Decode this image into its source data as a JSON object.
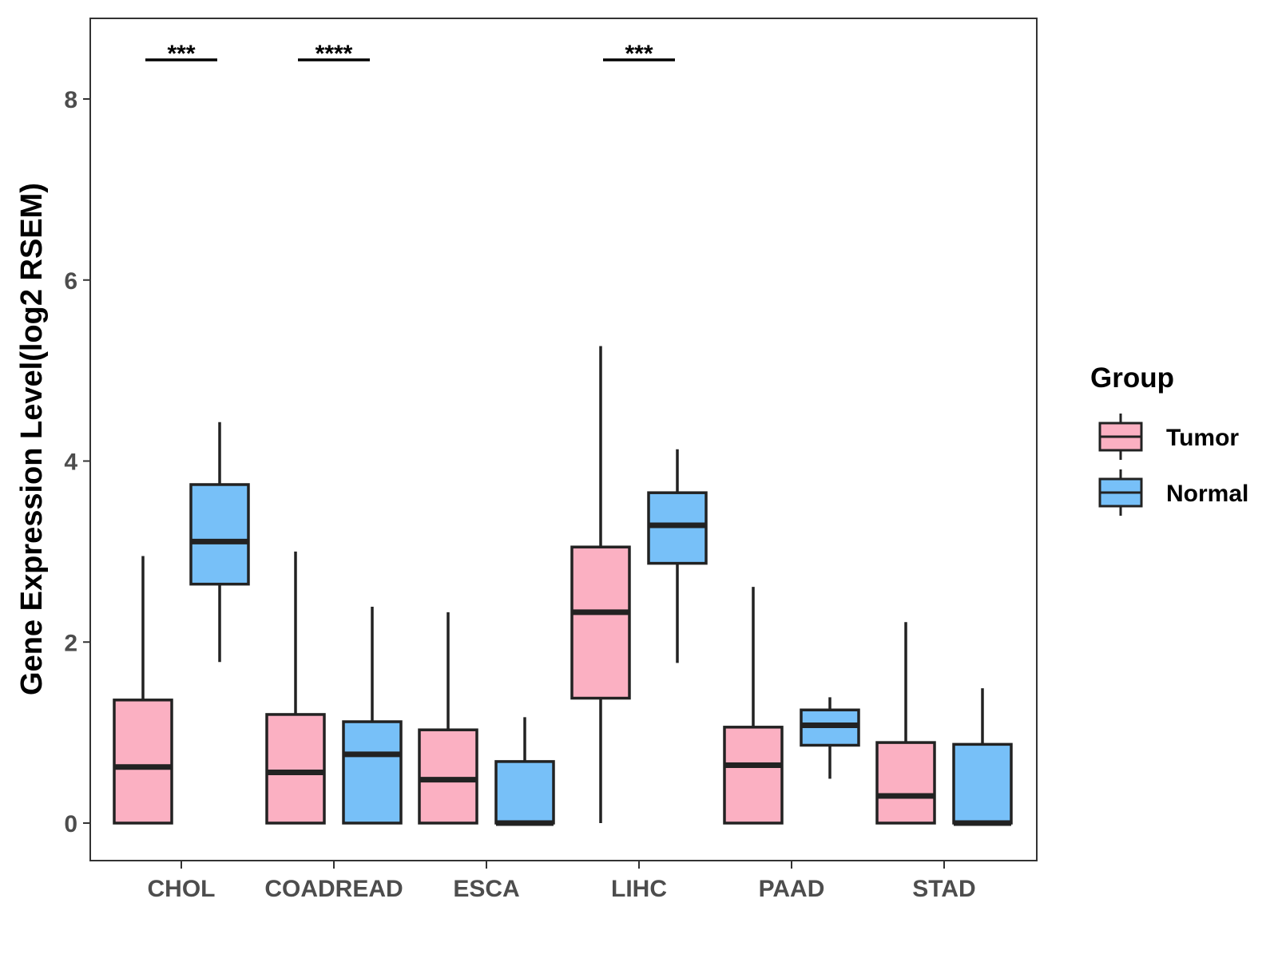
{
  "chart_data": {
    "type": "boxplot",
    "title": "",
    "xlabel": "",
    "ylabel": "Gene Expression Level(log2 RSEM)",
    "ylim": [
      -0.4,
      8.9
    ],
    "yticks": [
      0,
      2,
      4,
      6,
      8
    ],
    "categories": [
      "CHOL",
      "COADREAD",
      "ESCA",
      "LIHC",
      "PAAD",
      "STAD"
    ],
    "legend": {
      "title": "Group",
      "position": "right",
      "entries": [
        {
          "name": "Tumor",
          "color": "#FBB0C2"
        },
        {
          "name": "Normal",
          "color": "#77C0F8"
        }
      ]
    },
    "series": [
      {
        "name": "Tumor",
        "color": "#FBB0C2",
        "boxes": [
          {
            "category": "CHOL",
            "min": 0,
            "q1": 0,
            "median": 0.62,
            "q3": 1.36,
            "max": 2.95
          },
          {
            "category": "COADREAD",
            "min": 0,
            "q1": 0,
            "median": 0.56,
            "q3": 1.2,
            "max": 3.0
          },
          {
            "category": "ESCA",
            "min": 0,
            "q1": 0,
            "median": 0.48,
            "q3": 1.03,
            "max": 2.33
          },
          {
            "category": "LIHC",
            "min": 0,
            "q1": 1.38,
            "median": 2.33,
            "q3": 3.05,
            "max": 5.27
          },
          {
            "category": "PAAD",
            "min": 0,
            "q1": 0,
            "median": 0.64,
            "q3": 1.06,
            "max": 2.61
          },
          {
            "category": "STAD",
            "min": 0,
            "q1": 0,
            "median": 0.3,
            "q3": 0.89,
            "max": 2.22
          }
        ]
      },
      {
        "name": "Normal",
        "color": "#77C0F8",
        "boxes": [
          {
            "category": "CHOL",
            "min": 1.78,
            "q1": 2.64,
            "median": 3.11,
            "q3": 3.74,
            "max": 4.43
          },
          {
            "category": "COADREAD",
            "min": 0,
            "q1": 0,
            "median": 0.76,
            "q3": 1.12,
            "max": 2.39
          },
          {
            "category": "ESCA",
            "min": 0,
            "q1": 0,
            "median": 0.0,
            "q3": 0.68,
            "max": 1.17
          },
          {
            "category": "LIHC",
            "min": 1.77,
            "q1": 2.87,
            "median": 3.29,
            "q3": 3.65,
            "max": 4.13
          },
          {
            "category": "PAAD",
            "min": 0.49,
            "q1": 0.86,
            "median": 1.08,
            "q3": 1.25,
            "max": 1.39
          },
          {
            "category": "STAD",
            "min": 0,
            "q1": 0,
            "median": 0.0,
            "q3": 0.87,
            "max": 1.49
          }
        ]
      }
    ],
    "annotations": [
      {
        "category": "CHOL",
        "label": "***"
      },
      {
        "category": "COADREAD",
        "label": "****"
      },
      {
        "category": "LIHC",
        "label": "***"
      }
    ]
  }
}
